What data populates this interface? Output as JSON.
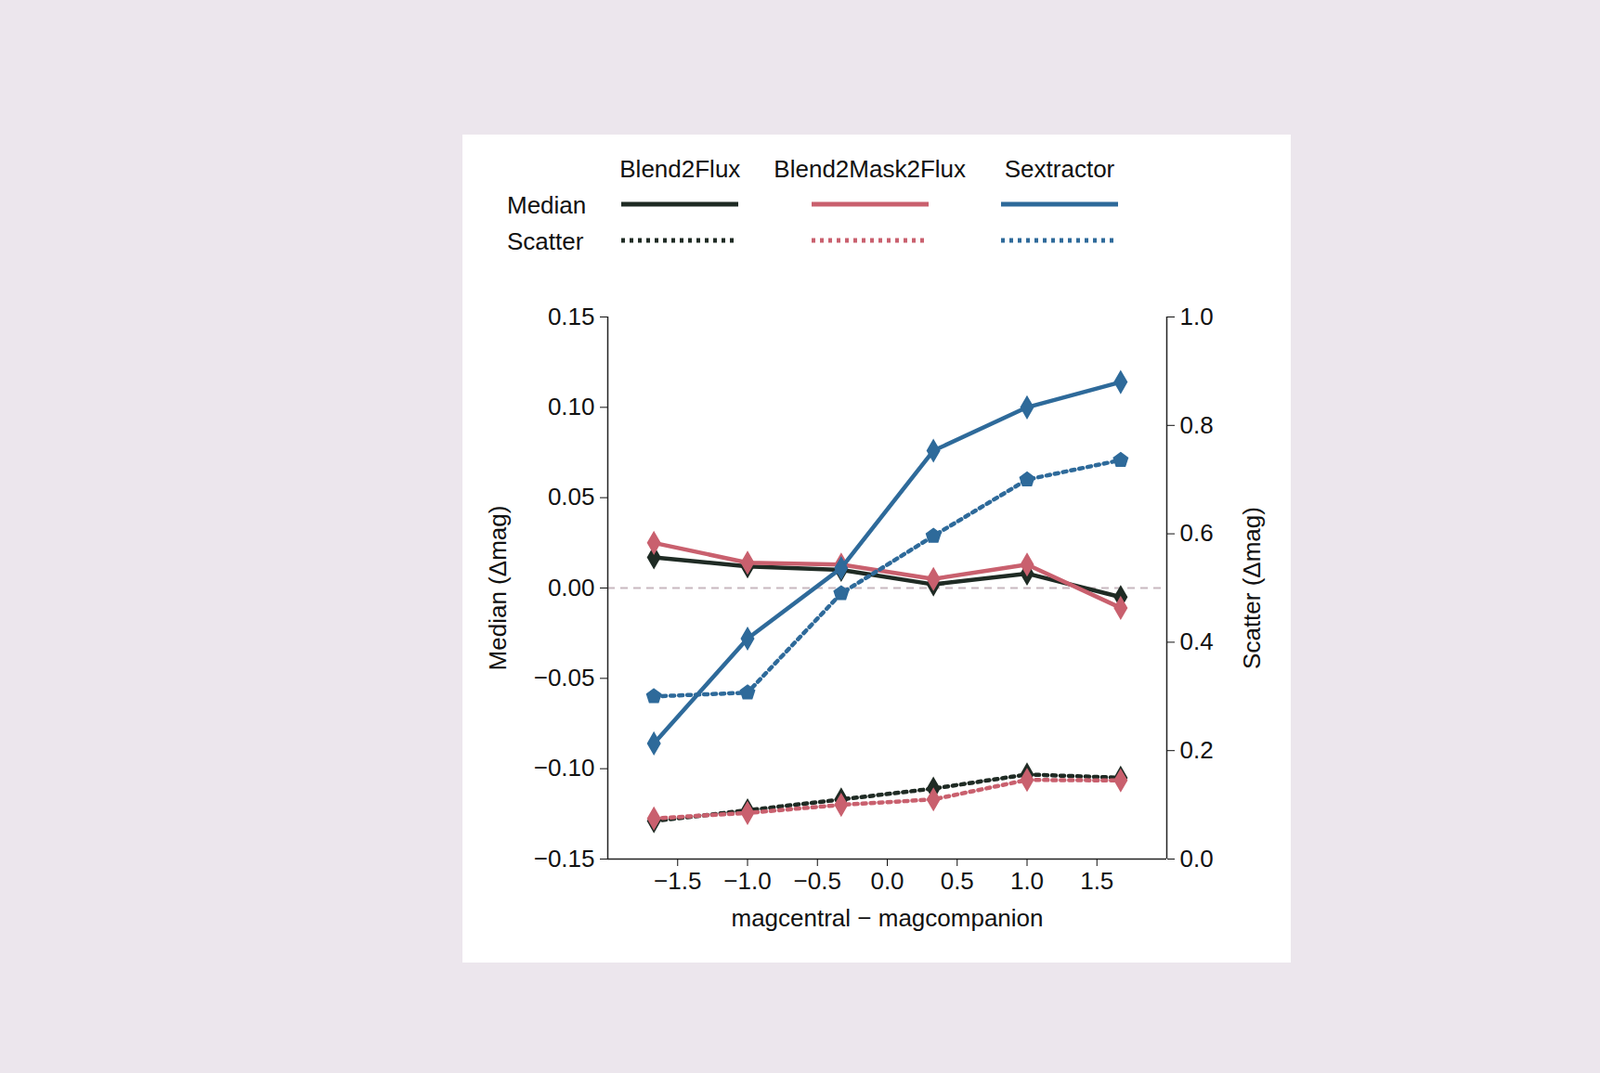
{
  "chart_data": {
    "type": "line",
    "x": [
      -1.67,
      -1.0,
      -0.33,
      0.33,
      1.0,
      1.67
    ],
    "xlabel": "magcentral − magcompanion",
    "ylabel": "Median (Δmag)",
    "y2label": "Scatter (Δmag)",
    "xlim": [
      -2.0,
      2.0
    ],
    "xticks": [
      {
        "value": -1.5,
        "label": "−1.5"
      },
      {
        "value": -1.0,
        "label": "−1.0"
      },
      {
        "value": -0.5,
        "label": "−0.5"
      },
      {
        "value": 0,
        "label": "0.0"
      },
      0.5,
      {
        "value": 1.0,
        "label": "1.0"
      },
      1.5
    ],
    "ylim": [
      -0.15,
      0.15
    ],
    "yticks": [
      {
        "value": -0.15,
        "label": "−0.15"
      },
      {
        "value": -0.1,
        "label": "−0.10"
      },
      {
        "value": -0.05,
        "label": "−0.05"
      },
      {
        "value": 0,
        "label": "0.00"
      },
      0.05,
      {
        "value": 0.1,
        "label": "0.10"
      },
      0.15
    ],
    "y2lim": [
      0.0,
      1.0
    ],
    "y2ticks": [
      {
        "value": 0,
        "label": "0.0"
      },
      0.2,
      0.4,
      0.6,
      0.8,
      {
        "value": 1.0,
        "label": "1.0"
      }
    ],
    "reference_y": 0,
    "legend": "top",
    "series": [
      {
        "name": "Blend2Flux",
        "group": "Median",
        "axis": "y",
        "color": "#1f2b24",
        "line_style": "solid",
        "marker": "diamond",
        "values": [
          0.017,
          0.012,
          0.01,
          0.002,
          0.008,
          -0.005
        ]
      },
      {
        "name": "Blend2Mask2Flux",
        "group": "Median",
        "axis": "y",
        "color": "#c9606e",
        "line_style": "solid",
        "marker": "diamond",
        "values": [
          0.025,
          0.014,
          0.013,
          0.005,
          0.013,
          -0.011
        ]
      },
      {
        "name": "Sextractor",
        "group": "Median",
        "axis": "y",
        "color": "#2e6a9a",
        "line_style": "solid",
        "marker": "diamond",
        "values": [
          -0.086,
          -0.028,
          0.011,
          0.076,
          0.1,
          0.114
        ]
      },
      {
        "name": "Blend2Flux",
        "group": "Scatter",
        "axis": "y2",
        "color": "#1f2b24",
        "line_style": "dotted",
        "marker": "diamond",
        "values": [
          0.07,
          0.09,
          0.11,
          0.13,
          0.156,
          0.15
        ]
      },
      {
        "name": "Blend2Mask2Flux",
        "group": "Scatter",
        "axis": "y2",
        "color": "#c9606e",
        "line_style": "dotted",
        "marker": "diamond",
        "values": [
          0.075,
          0.085,
          0.1,
          0.11,
          0.146,
          0.145
        ]
      },
      {
        "name": "Sextractor",
        "group": "Scatter",
        "axis": "y2",
        "color": "#2e6a9a",
        "line_style": "dotted",
        "marker": "pentagon",
        "values": [
          0.3,
          0.307,
          0.49,
          0.596,
          0.7,
          0.736
        ]
      }
    ]
  }
}
